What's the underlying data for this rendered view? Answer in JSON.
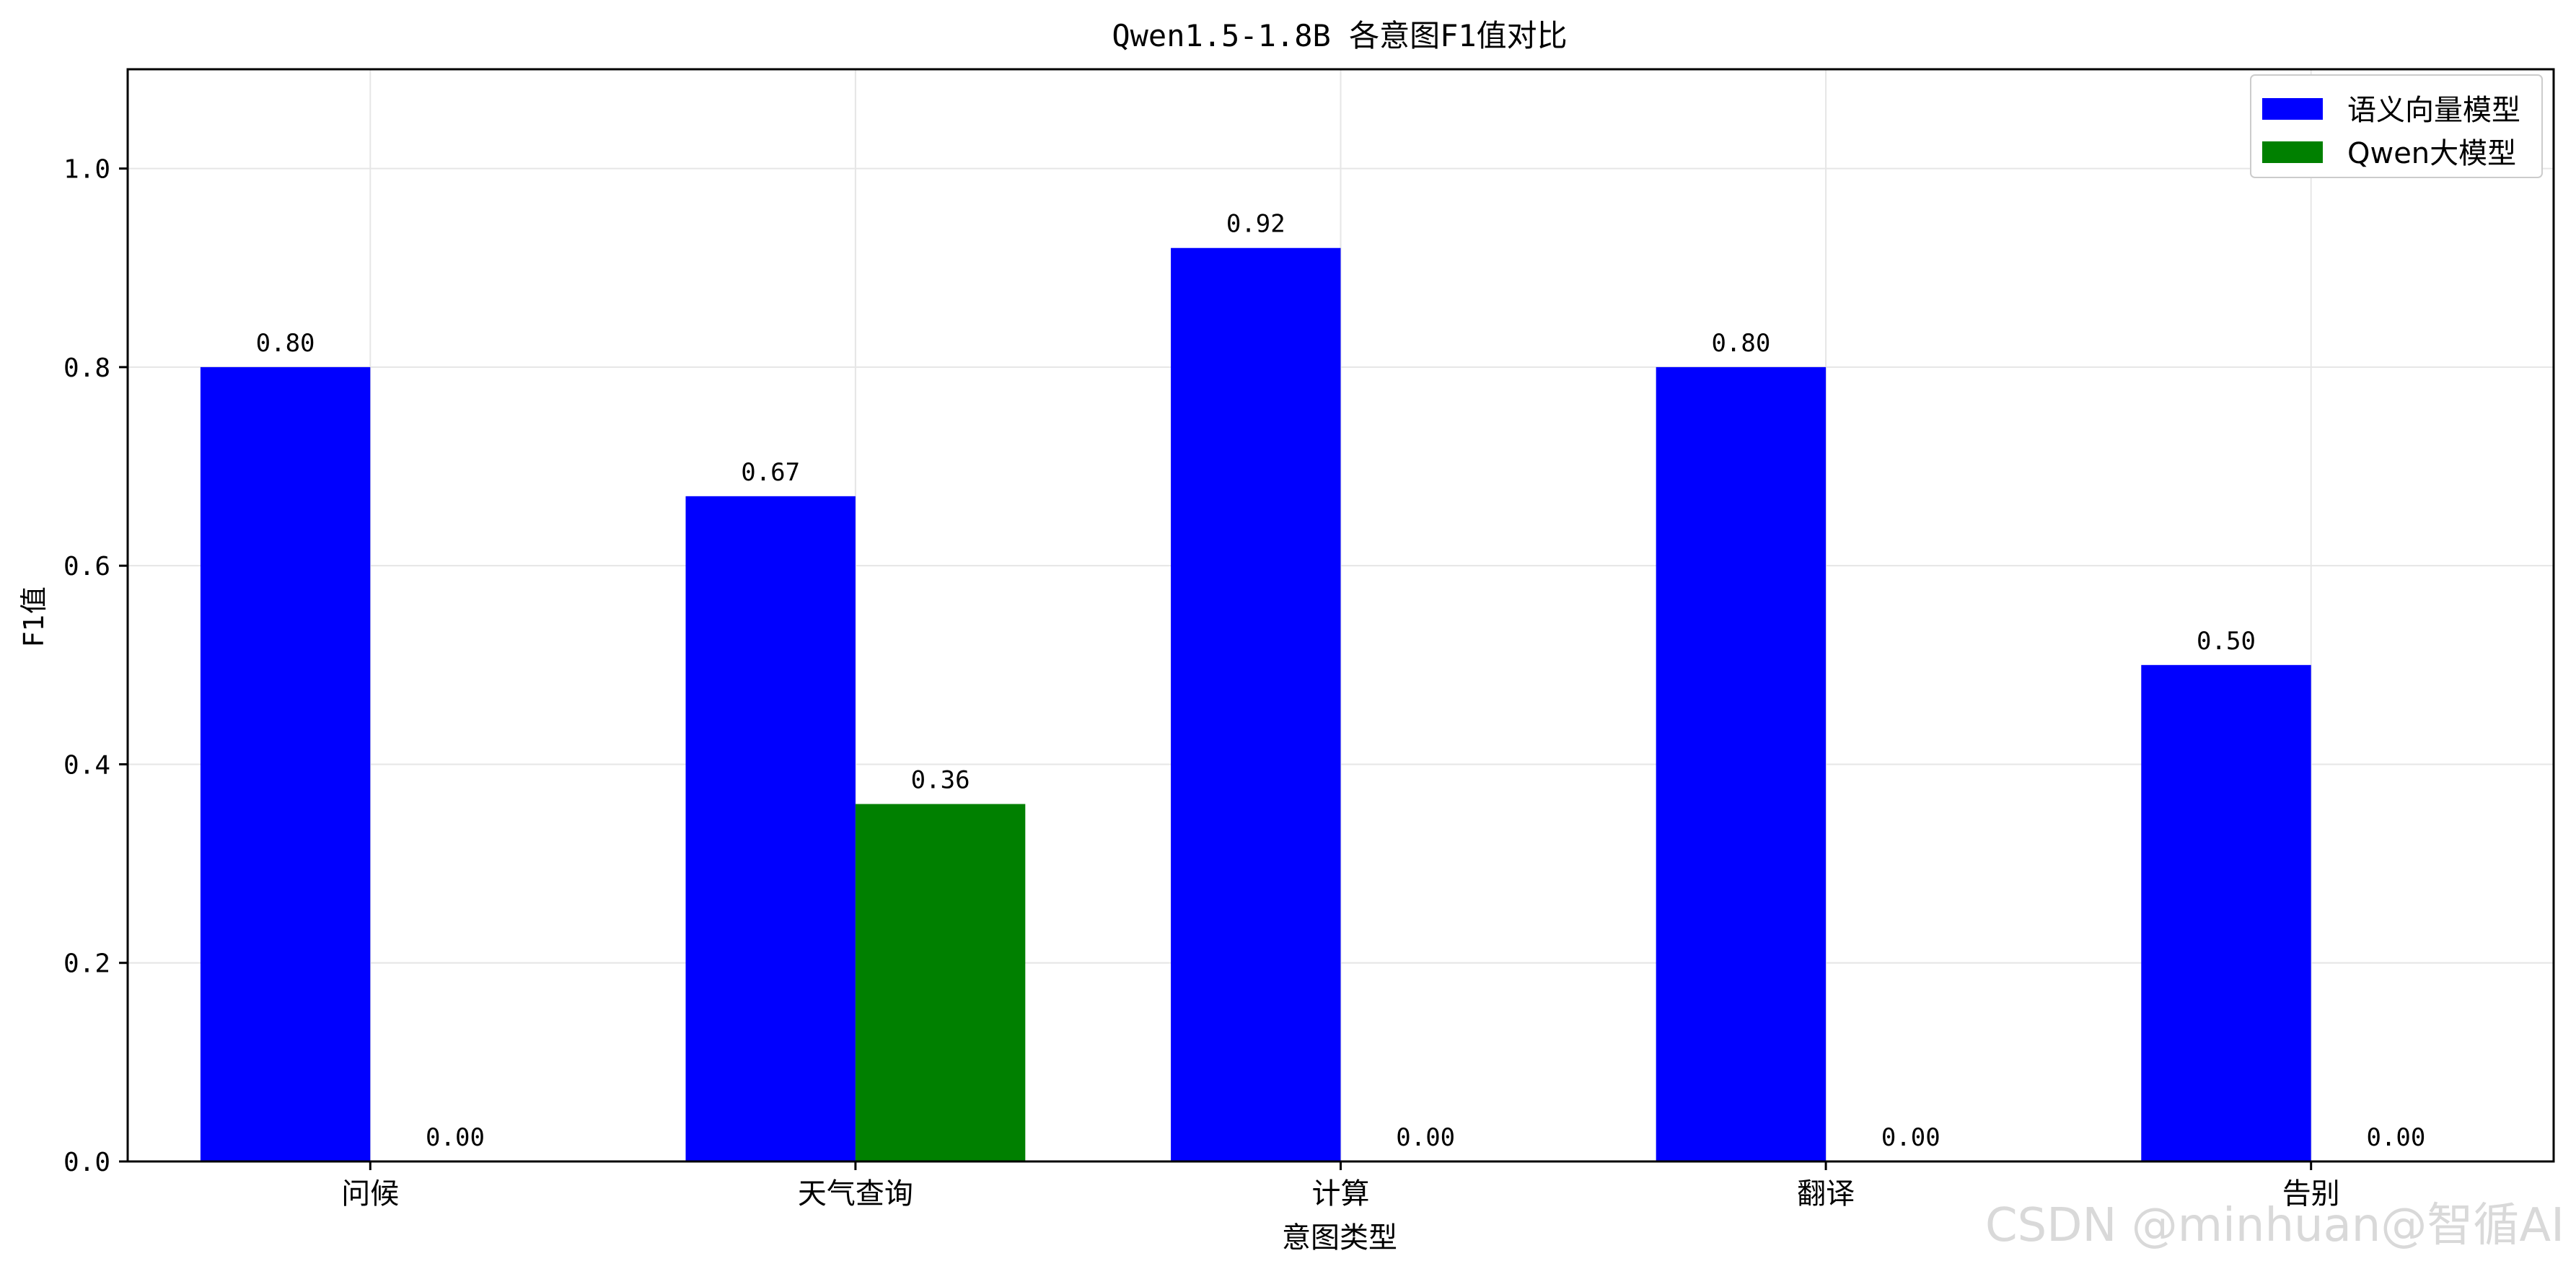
{
  "chart_data": {
    "type": "bar",
    "title": "Qwen1.5-1.8B 各意图F1值对比",
    "xlabel": "意图类型",
    "ylabel": "F1值",
    "categories": [
      "问候",
      "天气查询",
      "计算",
      "翻译",
      "告别"
    ],
    "series": [
      {
        "name": "语义向量模型",
        "color": "#0000ff",
        "values": [
          0.8,
          0.67,
          0.92,
          0.8,
          0.5
        ],
        "labels": [
          "0.80",
          "0.67",
          "0.92",
          "0.80",
          "0.50"
        ]
      },
      {
        "name": "Qwen大模型",
        "color": "#008000",
        "values": [
          0.0,
          0.36,
          0.0,
          0.0,
          0.0
        ],
        "labels": [
          "0.00",
          "0.36",
          "0.00",
          "0.00",
          "0.00"
        ]
      }
    ],
    "ylim": [
      0,
      1.1
    ],
    "yticks": [
      0.0,
      0.2,
      0.4,
      0.6,
      0.8,
      1.0
    ],
    "ytick_labels": [
      "0.0",
      "0.2",
      "0.4",
      "0.6",
      "0.8",
      "1.0"
    ],
    "grid": true,
    "legend": "top-right"
  },
  "watermark": "CSDN @minhuan@智循AI"
}
